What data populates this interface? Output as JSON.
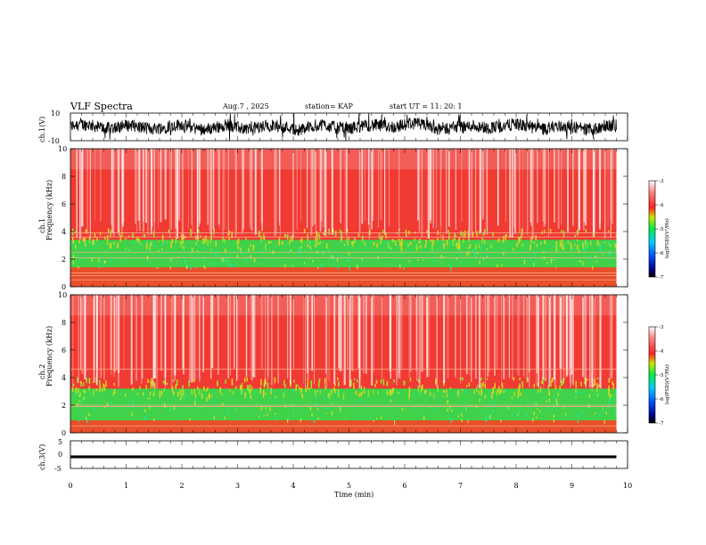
{
  "header": {
    "title": "VLF Spectra",
    "date": "Aug.7  , 2025",
    "station": "station= KAP",
    "start": "start  UT  =   11: 20: 1"
  },
  "chart_data": [
    {
      "type": "line",
      "name": "ch1-waveform",
      "ylabel": "ch.1(V)",
      "ylim": [
        -10,
        10
      ],
      "yticks": [
        "10",
        "-10"
      ],
      "xlim": [
        0,
        10
      ],
      "data_end_min": 9.8,
      "series": [
        {
          "name": "ch.1 voltage",
          "description_range_V": [
            -8,
            8
          ]
        }
      ]
    },
    {
      "type": "heatmap",
      "name": "ch1-spectrogram",
      "ylabel_top": "ch.1",
      "ylabel": "Frequency  (kHz)",
      "ylim": [
        0,
        10
      ],
      "yticks": [
        "0",
        "2",
        "4",
        "6",
        "8",
        "10"
      ],
      "xlim": [
        0,
        10
      ],
      "data_end_min": 9.8,
      "green_band_kHz": [
        1.4,
        3.4
      ],
      "bright_lines_kHz": [
        0.5,
        0.8,
        1.0,
        2.1,
        2.5,
        3.6,
        3.9
      ],
      "colorbar": {
        "label": "log(PSD)(V²/Hz)",
        "ticks": [
          "-3",
          "-4",
          "-5",
          "-6",
          "-7"
        ],
        "range": [
          -7,
          -3
        ]
      }
    },
    {
      "type": "heatmap",
      "name": "ch2-spectrogram",
      "ylabel_top": "ch.2",
      "ylabel": "Frequency  (kHz)",
      "ylim": [
        0,
        10
      ],
      "yticks": [
        "0",
        "2",
        "4",
        "6",
        "8",
        "10"
      ],
      "xlim": [
        0,
        10
      ],
      "data_end_min": 9.8,
      "green_band_kHz": [
        0.9,
        3.2
      ],
      "bright_lines_kHz": [
        0.5,
        1.9,
        2.0,
        4.6
      ],
      "colorbar": {
        "label": "log(PSD)(V²/Hz)",
        "ticks": [
          "-3",
          "-4",
          "-5",
          "-6",
          "-7"
        ],
        "range": [
          -7,
          -3
        ]
      }
    },
    {
      "type": "line",
      "name": "ch3-waveform",
      "ylabel": "ch.3(V)",
      "ylim": [
        -5,
        5
      ],
      "yticks": [
        "5",
        "0",
        "-5"
      ],
      "xlim": [
        0,
        10
      ],
      "xlabel": "Time  (min)",
      "xticks": [
        "0",
        "1",
        "2",
        "3",
        "4",
        "5",
        "6",
        "7",
        "8",
        "9",
        "10"
      ],
      "data_end_min": 9.8,
      "series": [
        {
          "name": "ch.3 voltage",
          "center_V": -0.8,
          "half_band_V": 0.5
        }
      ]
    }
  ]
}
